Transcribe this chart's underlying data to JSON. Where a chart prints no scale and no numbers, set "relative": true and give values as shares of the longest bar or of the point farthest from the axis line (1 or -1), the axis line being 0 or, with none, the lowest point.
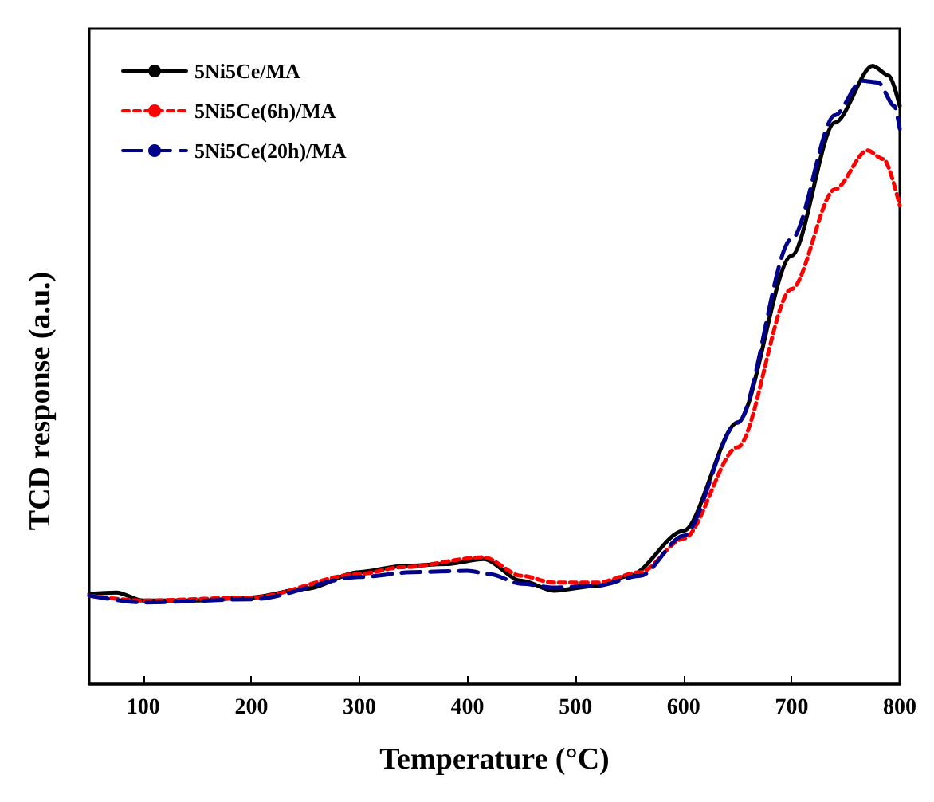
{
  "chart_data": {
    "type": "line",
    "relative": true,
    "xlabel": "Temperature (°C)",
    "ylabel": "TCD response (a.u.)",
    "xlim": [
      50,
      800
    ],
    "xticks": [
      100,
      200,
      300,
      400,
      500,
      600,
      700,
      800
    ],
    "grid": false,
    "legend": "top left",
    "marker": "none",
    "series": [
      {
        "name": "5Ni5Ce/MA",
        "color": "#000000",
        "line_style": "solid",
        "x": [
          50,
          75,
          100,
          150,
          200,
          250,
          300,
          340,
          380,
          415,
          450,
          480,
          520,
          550,
          600,
          650,
          700,
          740,
          775,
          790,
          800
        ],
        "values": [
          0.146,
          0.148,
          0.135,
          0.135,
          0.14,
          0.154,
          0.181,
          0.191,
          0.194,
          0.202,
          0.167,
          0.151,
          0.159,
          0.175,
          0.248,
          0.423,
          0.693,
          0.908,
          1.0,
          0.984,
          0.935
        ]
      },
      {
        "name": "5Ni5Ce(6h)/MA",
        "color": "#ff0000",
        "line_style": "dotted",
        "x": [
          50,
          100,
          200,
          300,
          340,
          415,
          450,
          480,
          520,
          560,
          600,
          650,
          700,
          740,
          770,
          785,
          800
        ],
        "values": [
          0.143,
          0.135,
          0.14,
          0.178,
          0.189,
          0.205,
          0.175,
          0.164,
          0.164,
          0.181,
          0.235,
          0.383,
          0.639,
          0.8,
          0.863,
          0.849,
          0.774
        ]
      },
      {
        "name": "5Ni5Ce(20h)/MA",
        "color": "#00008b",
        "line_style": "dashed",
        "x": [
          50,
          100,
          200,
          300,
          350,
          400,
          420,
          450,
          480,
          520,
          560,
          600,
          650,
          700,
          740,
          765,
          780,
          795,
          800
        ],
        "values": [
          0.143,
          0.132,
          0.137,
          0.173,
          0.181,
          0.183,
          0.178,
          0.162,
          0.156,
          0.159,
          0.175,
          0.24,
          0.423,
          0.72,
          0.92,
          0.976,
          0.973,
          0.935,
          0.898
        ]
      }
    ]
  }
}
